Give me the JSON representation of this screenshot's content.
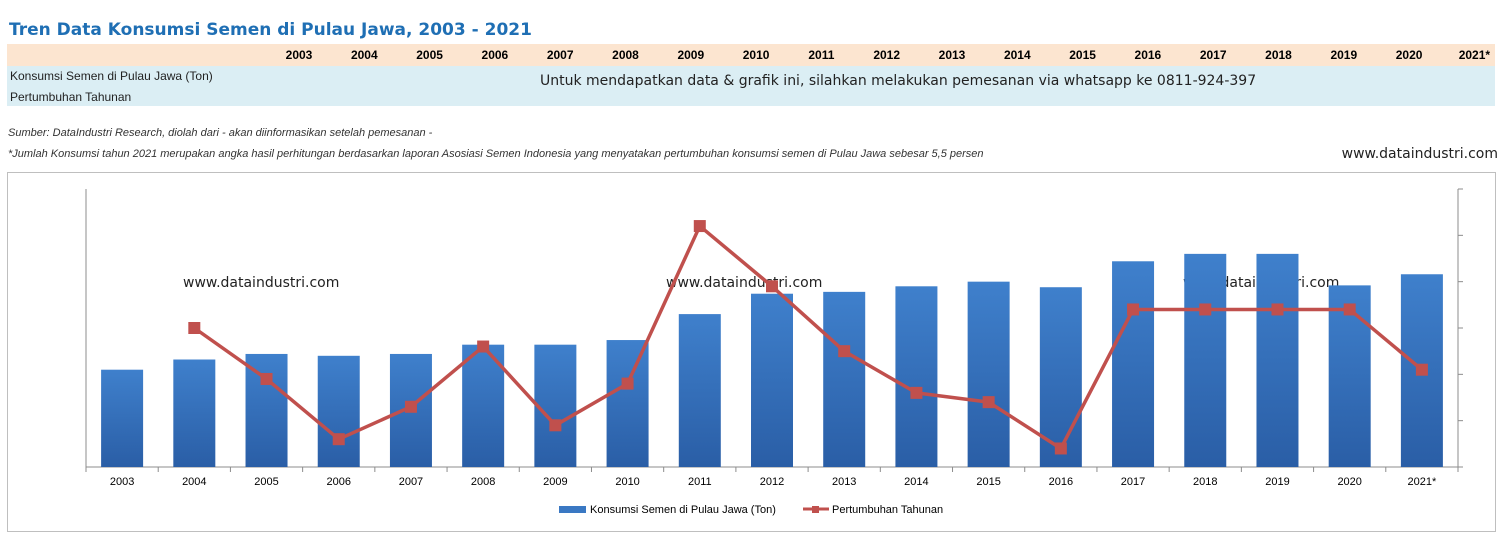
{
  "title": "Tren Data Konsumsi Semen di Pulau Jawa, 2003 - 2021",
  "table": {
    "years": [
      "2003",
      "2004",
      "2005",
      "2006",
      "2007",
      "2008",
      "2009",
      "2010",
      "2011",
      "2012",
      "2013",
      "2014",
      "2015",
      "2016",
      "2017",
      "2018",
      "2019",
      "2020",
      "2021*"
    ],
    "row_labels": [
      "Konsumsi Semen di Pulau Jawa (Ton)",
      "Pertumbuhan Tahunan"
    ],
    "order_message": "Untuk mendapatkan data & grafik ini, silahkan melakukan pemesanan via whatsapp ke 0811-924-397"
  },
  "source_note": "Sumber: DataIndustri Research, diolah dari - akan diinformasikan setelah pemesanan -",
  "footnote": "*Jumlah Konsumsi tahun 2021 merupakan angka hasil perhitungan berdasarkan laporan Asosiasi Semen Indonesia yang menyatakan pertumbuhan konsumsi semen di Pulau Jawa sebesar 5,5 persen",
  "site_url": "www.dataindustri.com",
  "watermark": "www.dataindustri.com",
  "colors": {
    "bar": "#3a78c3",
    "bar_dark": "#2a5ea6",
    "line": "#c0504d",
    "title": "#1f6fb4",
    "header_bg": "#fce5d0",
    "row_bg": "#dbeef4"
  },
  "chart_data": {
    "type": "bar",
    "categories": [
      "2003",
      "2004",
      "2005",
      "2006",
      "2007",
      "2008",
      "2009",
      "2010",
      "2011",
      "2012",
      "2013",
      "2014",
      "2015",
      "2016",
      "2017",
      "2018",
      "2019",
      "2020",
      "2021*"
    ],
    "series": [
      {
        "name": "Konsumsi Semen di Pulau Jawa (Ton)",
        "type": "bar",
        "axis": "left",
        "values": [
          105,
          116,
          122,
          120,
          122,
          132,
          132,
          137,
          165,
          187,
          189,
          195,
          200,
          194,
          222,
          230,
          230,
          196,
          208
        ]
      },
      {
        "name": "Pertumbuhan Tahunan",
        "type": "line",
        "axis": "right",
        "values": [
          null,
          30,
          19,
          6,
          13,
          26,
          9,
          18,
          52,
          39,
          25,
          16,
          14,
          4,
          34,
          34,
          34,
          34,
          21
        ]
      }
    ],
    "ylim": [
      0,
      300
    ],
    "y2lim": [
      0,
      60
    ],
    "tick_labels_shown": false,
    "legend_position": "bottom",
    "grid": false
  }
}
